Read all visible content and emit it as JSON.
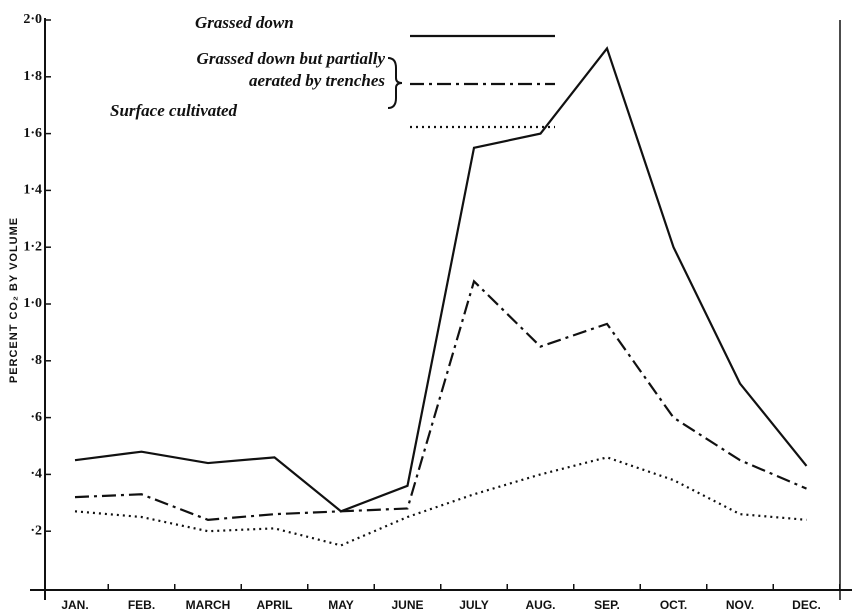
{
  "chart_data": {
    "type": "line",
    "y_label": "PERCENT CO₂ BY VOLUME",
    "categories": [
      "JAN.",
      "FEB.",
      "MARCH",
      "APRIL",
      "MAY",
      "JUNE",
      "JULY",
      "AUG.",
      "SEP.",
      "OCT.",
      "NOV.",
      "DEC."
    ],
    "series": [
      {
        "name": "Grassed down",
        "color": "#111111",
        "dash": "solid",
        "values": [
          0.45,
          0.48,
          0.44,
          0.46,
          0.27,
          0.36,
          1.55,
          1.6,
          1.9,
          1.2,
          0.72,
          0.43
        ]
      },
      {
        "name": "Grassed down but partially aerated by trenches",
        "color": "#111111",
        "dash": "dashdot",
        "values": [
          0.32,
          0.33,
          0.24,
          0.26,
          0.27,
          0.28,
          1.08,
          0.85,
          0.93,
          0.6,
          0.45,
          0.35
        ]
      },
      {
        "name": "Surface cultivated",
        "color": "#111111",
        "dash": "dotted",
        "values": [
          0.27,
          0.25,
          0.2,
          0.21,
          0.15,
          0.25,
          0.33,
          0.4,
          0.46,
          0.38,
          0.26,
          0.24
        ]
      }
    ],
    "ylim": [
      0,
      2.0
    ],
    "yticks": [
      {
        "value": 0.2,
        "label": "·2"
      },
      {
        "value": 0.4,
        "label": "·4"
      },
      {
        "value": 0.6,
        "label": "·6"
      },
      {
        "value": 0.8,
        "label": "·8"
      },
      {
        "value": 1.0,
        "label": "1·0"
      },
      {
        "value": 1.2,
        "label": "1·2"
      },
      {
        "value": 1.4,
        "label": "1·4"
      },
      {
        "value": 1.6,
        "label": "1·6"
      },
      {
        "value": 1.8,
        "label": "1·8"
      },
      {
        "value": 2.0,
        "label": "2·0"
      }
    ]
  }
}
